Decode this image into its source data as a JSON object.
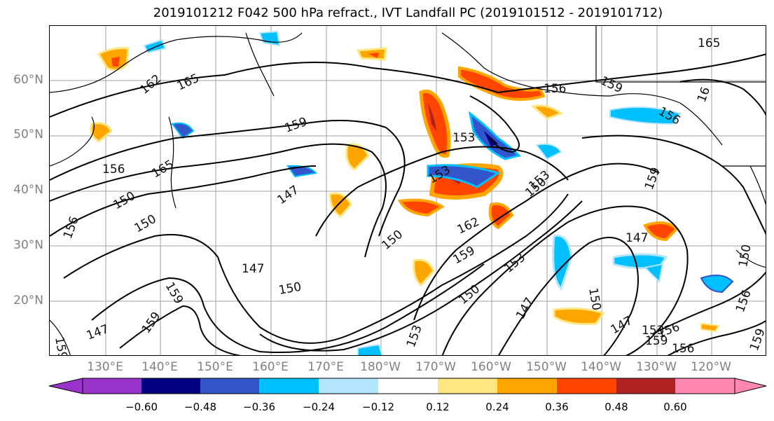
{
  "title": "2019101212 F042 500 hPa refract., IVT Landfall PC (2019101512 - 2019101712)",
  "lat_labels": [
    "60°N",
    "50°N",
    "40°N",
    "30°N",
    "20°N"
  ],
  "lon_labels": [
    "130°E",
    "140°E",
    "150°E",
    "160°E",
    "170°E",
    "180°W",
    "170°W",
    "160°W",
    "150°W",
    "140°W",
    "130°W",
    "120°W"
  ],
  "contour_labels": [
    "165",
    "162",
    "165",
    "159",
    "156",
    "159",
    "153",
    "156",
    "16",
    "165",
    "156",
    "150",
    "156",
    "150",
    "147",
    "153",
    "150",
    "153",
    "159",
    "162",
    "147",
    "159",
    "150",
    "147",
    "150",
    "159",
    "153",
    "150",
    "153",
    "147",
    "150",
    "147",
    "159",
    "156",
    "153",
    "159",
    "156",
    "156",
    "150",
    "159",
    "147",
    "159"
  ],
  "colorbar": {
    "colors": [
      "#9933cc",
      "#000080",
      "#3355cc",
      "#00bfff",
      "#b3e5ff",
      "#ffffff",
      "#ffe680",
      "#ffa500",
      "#ff4500",
      "#b22222",
      "#ff88b0"
    ],
    "tick_labels": [
      "−0.60",
      "−0.48",
      "−0.36",
      "−0.24",
      "−0.12",
      "0.12",
      "0.24",
      "0.36",
      "0.48",
      "0.60"
    ]
  }
}
